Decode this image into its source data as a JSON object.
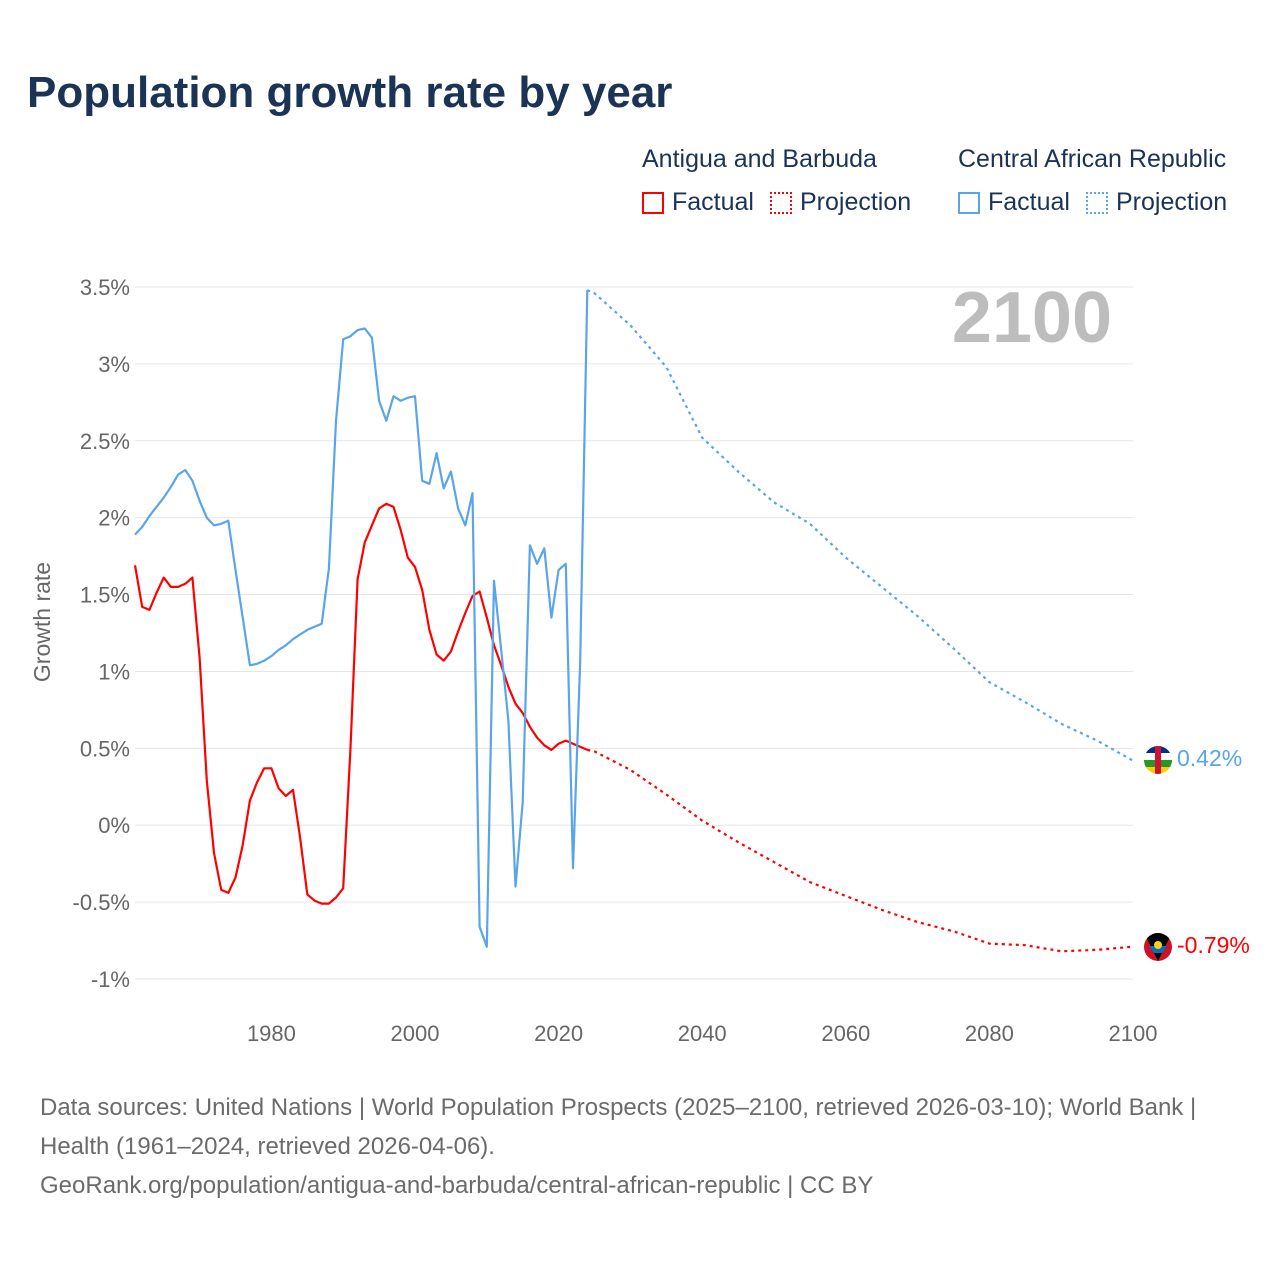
{
  "title": "Population growth rate by year",
  "legend": [
    {
      "country": "Antigua and Barbuda",
      "color": "#ff0000",
      "factual": "Factual",
      "projection": "Projection"
    },
    {
      "country": "Central African Republic",
      "color": "#5aa5ea",
      "factual": "Factual",
      "projection": "Projection"
    }
  ],
  "year_watermark": "2100",
  "end_labels": {
    "car": "0.42%",
    "antigua": "-0.79%"
  },
  "footer": {
    "sources": "Data sources: United Nations | World Population Prospects (2025–2100, retrieved 2026-03-10); World Bank | Health (1961–2024, retrieved 2026-04-06).",
    "link": "GeoRank.org/population/antigua-and-barbuda/central-african-republic | CC BY"
  },
  "chart_data": {
    "type": "line",
    "title": "Population growth rate by year",
    "xlabel": "",
    "ylabel": "Growth rate",
    "xlim": [
      1961,
      2100
    ],
    "ylim": [
      -1,
      3.5
    ],
    "x_ticks": [
      1980,
      2000,
      2020,
      2040,
      2060,
      2080,
      2100
    ],
    "y_ticks": [
      {
        "v": 3.5,
        "l": "3.5%"
      },
      {
        "v": 3,
        "l": "3%"
      },
      {
        "v": 2.5,
        "l": "2.5%"
      },
      {
        "v": 2,
        "l": "2%"
      },
      {
        "v": 1.5,
        "l": "1.5%"
      },
      {
        "v": 1,
        "l": "1%"
      },
      {
        "v": 0.5,
        "l": "0.5%"
      },
      {
        "v": 0,
        "l": "0%"
      },
      {
        "v": -0.5,
        "l": "-0.5%"
      },
      {
        "v": -1,
        "l": "-1%"
      }
    ],
    "grid": true,
    "series": [
      {
        "name": "Antigua and Barbuda – Factual",
        "color": "#ff0000",
        "dashed": false,
        "x": [
          1961,
          1962,
          1963,
          1964,
          1965,
          1966,
          1967,
          1968,
          1969,
          1970,
          1971,
          1972,
          1973,
          1974,
          1975,
          1976,
          1977,
          1978,
          1979,
          1980,
          1981,
          1982,
          1983,
          1984,
          1985,
          1986,
          1987,
          1988,
          1989,
          1990,
          1991,
          1992,
          1993,
          1994,
          1995,
          1996,
          1997,
          1998,
          1999,
          2000,
          2001,
          2002,
          2003,
          2004,
          2005,
          2006,
          2007,
          2008,
          2009,
          2010,
          2011,
          2012,
          2013,
          2014,
          2015,
          2016,
          2017,
          2018,
          2019,
          2020,
          2021,
          2022,
          2023,
          2024
        ],
        "y": [
          1.69,
          1.42,
          1.4,
          1.51,
          1.61,
          1.55,
          1.55,
          1.57,
          1.61,
          1.09,
          0.29,
          -0.18,
          -0.42,
          -0.44,
          -0.34,
          -0.13,
          0.16,
          0.28,
          0.37,
          0.37,
          0.24,
          0.19,
          0.23,
          -0.08,
          -0.45,
          -0.49,
          -0.51,
          -0.51,
          -0.47,
          -0.41,
          0.49,
          1.6,
          1.84,
          1.95,
          2.06,
          2.09,
          2.07,
          1.92,
          1.74,
          1.68,
          1.53,
          1.27,
          1.11,
          1.07,
          1.13,
          1.26,
          1.38,
          1.49,
          1.52,
          1.35,
          1.17,
          1.04,
          0.9,
          0.79,
          0.73,
          0.64,
          0.57,
          0.52,
          0.49,
          0.53,
          0.55,
          0.53,
          0.51,
          0.49
        ]
      },
      {
        "name": "Antigua and Barbuda – Projection",
        "color": "#ff0000",
        "dashed": true,
        "x": [
          2024,
          2025,
          2030,
          2035,
          2040,
          2045,
          2050,
          2055,
          2060,
          2065,
          2070,
          2075,
          2080,
          2085,
          2090,
          2095,
          2100
        ],
        "y": [
          0.49,
          0.48,
          0.36,
          0.2,
          0.03,
          -0.11,
          -0.24,
          -0.37,
          -0.46,
          -0.55,
          -0.63,
          -0.69,
          -0.77,
          -0.78,
          -0.82,
          -0.81,
          -0.79
        ]
      },
      {
        "name": "Central African Republic – Factual",
        "color": "#5aa5ea",
        "dashed": false,
        "x": [
          1961,
          1962,
          1963,
          1964,
          1965,
          1966,
          1967,
          1968,
          1969,
          1970,
          1971,
          1972,
          1973,
          1974,
          1975,
          1976,
          1977,
          1978,
          1979,
          1980,
          1981,
          1982,
          1983,
          1984,
          1985,
          1986,
          1987,
          1988,
          1989,
          1990,
          1991,
          1992,
          1993,
          1994,
          1995,
          1996,
          1997,
          1998,
          1999,
          2000,
          2001,
          2002,
          2003,
          2004,
          2005,
          2006,
          2007,
          2008,
          2009,
          2010,
          2011,
          2012,
          2013,
          2014,
          2015,
          2016,
          2017,
          2018,
          2019,
          2020,
          2021,
          2022,
          2023,
          2024
        ],
        "y": [
          1.89,
          1.94,
          2.01,
          2.07,
          2.13,
          2.2,
          2.28,
          2.31,
          2.24,
          2.11,
          2.0,
          1.95,
          1.96,
          1.98,
          1.66,
          1.35,
          1.04,
          1.05,
          1.07,
          1.1,
          1.14,
          1.17,
          1.21,
          1.24,
          1.27,
          1.29,
          1.31,
          1.67,
          2.63,
          3.16,
          3.18,
          3.22,
          3.23,
          3.17,
          2.76,
          2.63,
          2.79,
          2.76,
          2.78,
          2.79,
          2.24,
          2.22,
          2.42,
          2.19,
          2.3,
          2.06,
          1.95,
          2.16,
          -0.66,
          -0.79,
          1.59,
          1.14,
          0.68,
          -0.4,
          0.15,
          1.82,
          1.7,
          1.8,
          1.35,
          1.66,
          1.7,
          -0.28,
          1.07,
          3.48
        ]
      },
      {
        "name": "Central African Republic – Projection",
        "color": "#5aa5ea",
        "dashed": true,
        "x": [
          2024,
          2025,
          2030,
          2035,
          2040,
          2045,
          2050,
          2055,
          2060,
          2065,
          2070,
          2075,
          2080,
          2085,
          2090,
          2095,
          2100
        ],
        "y": [
          3.48,
          3.46,
          3.25,
          2.98,
          2.52,
          2.3,
          2.1,
          1.96,
          1.74,
          1.55,
          1.36,
          1.15,
          0.93,
          0.8,
          0.66,
          0.55,
          0.42
        ]
      }
    ]
  }
}
